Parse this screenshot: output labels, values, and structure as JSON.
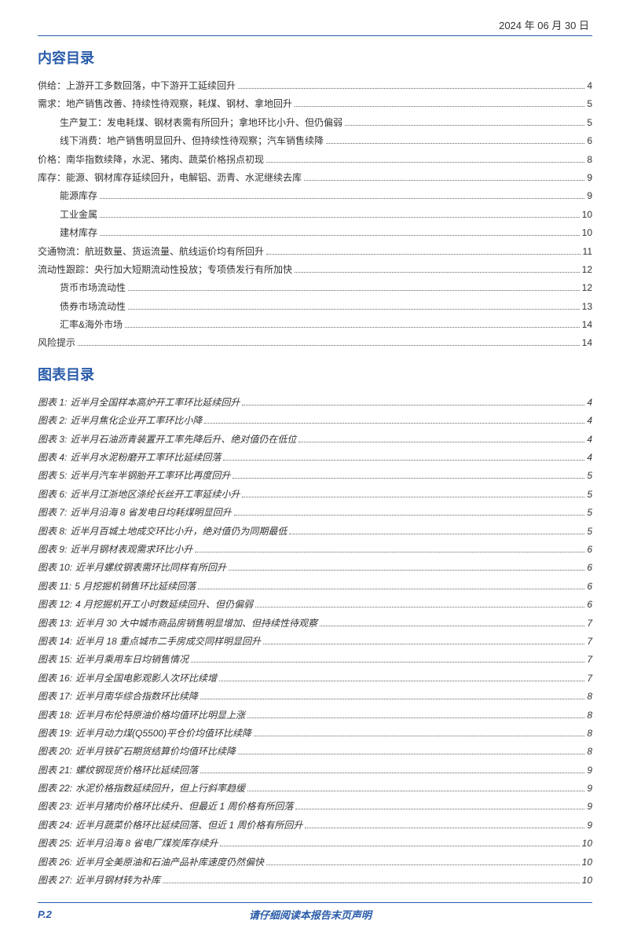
{
  "colors": {
    "primary": "#2a5caa",
    "text": "#333333",
    "background": "#ffffff",
    "dots": "#666666"
  },
  "header": {
    "date": "2024 年 06 月 30 日"
  },
  "sections": {
    "content_toc_title": "内容目录",
    "figure_toc_title": "图表目录"
  },
  "content_toc": [
    {
      "indent": 0,
      "label": "供给：上游开工多数回落，中下游开工延续回升",
      "page": "4"
    },
    {
      "indent": 0,
      "label": "需求：地产销售改善、持续性待观察，耗煤、钢材、拿地回升",
      "page": "5"
    },
    {
      "indent": 1,
      "label": "生产复工：发电耗煤、钢材表需有所回升；拿地环比小升、但仍偏弱",
      "page": "5"
    },
    {
      "indent": 1,
      "label": "线下消费：地产销售明显回升、但持续性待观察；汽车销售续降",
      "page": "6"
    },
    {
      "indent": 0,
      "label": "价格：南华指数续降，水泥、猪肉、蔬菜价格拐点初现",
      "page": "8"
    },
    {
      "indent": 0,
      "label": "库存：能源、钢材库存延续回升，电解铝、沥青、水泥继续去库",
      "page": "9"
    },
    {
      "indent": 1,
      "label": "能源库存",
      "page": "9"
    },
    {
      "indent": 1,
      "label": "工业金属",
      "page": "10"
    },
    {
      "indent": 1,
      "label": "建材库存",
      "page": "10"
    },
    {
      "indent": 0,
      "label": "交通物流：航班数量、货运流量、航线运价均有所回升",
      "page": "11"
    },
    {
      "indent": 0,
      "label": "流动性跟踪：央行加大短期流动性投放；专项债发行有所加快",
      "page": "12"
    },
    {
      "indent": 1,
      "label": "货币市场流动性",
      "page": "12"
    },
    {
      "indent": 1,
      "label": "债券市场流动性",
      "page": "13"
    },
    {
      "indent": 1,
      "label": "汇率&海外市场",
      "page": "14"
    },
    {
      "indent": 0,
      "label": "风险提示",
      "page": "14"
    }
  ],
  "figure_toc": [
    {
      "prefix": "图表 1:",
      "title": "近半月全国样本高炉开工率环比延续回升",
      "page": "4"
    },
    {
      "prefix": "图表 2:",
      "title": "近半月焦化企业开工率环比小降",
      "page": "4"
    },
    {
      "prefix": "图表 3:",
      "title": "近半月石油沥青装置开工率先降后升、绝对值仍在低位",
      "page": "4"
    },
    {
      "prefix": "图表 4:",
      "title": "近半月水泥粉磨开工率环比延续回落",
      "page": "4"
    },
    {
      "prefix": "图表 5:",
      "title": "近半月汽车半钢胎开工率环比再度回升",
      "page": "5"
    },
    {
      "prefix": "图表 6:",
      "title": "近半月江浙地区涤纶长丝开工率延续小升",
      "page": "5"
    },
    {
      "prefix": "图表 7:",
      "title": "近半月沿海 8 省发电日均耗煤明显回升",
      "page": "5"
    },
    {
      "prefix": "图表 8:",
      "title": "近半月百城土地成交环比小升，绝对值仍为同期最低",
      "page": "5"
    },
    {
      "prefix": "图表 9:",
      "title": "近半月钢材表观需求环比小升",
      "page": "6"
    },
    {
      "prefix": "图表 10:",
      "title": "近半月螺纹钢表需环比同样有所回升",
      "page": "6"
    },
    {
      "prefix": "图表 11:",
      "title": "5 月挖掘机销售环比延续回落",
      "page": "6"
    },
    {
      "prefix": "图表 12:",
      "title": "4 月挖掘机开工小时数延续回升、但仍偏弱",
      "page": "6"
    },
    {
      "prefix": "图表 13:",
      "title": "近半月 30 大中城市商品房销售明显增加、但持续性待观察",
      "page": "7"
    },
    {
      "prefix": "图表 14:",
      "title": "近半月 18 重点城市二手房成交同样明显回升",
      "page": "7"
    },
    {
      "prefix": "图表 15:",
      "title": "近半月乘用车日均销售情况",
      "page": "7"
    },
    {
      "prefix": "图表 16:",
      "title": "近半月全国电影观影人次环比续增",
      "page": "7"
    },
    {
      "prefix": "图表 17:",
      "title": "近半月南华综合指数环比续降",
      "page": "8"
    },
    {
      "prefix": "图表 18:",
      "title": "近半月布伦特原油价格均值环比明显上涨",
      "page": "8"
    },
    {
      "prefix": "图表 19:",
      "title": "近半月动力煤(Q5500)平仓价均值环比续降",
      "page": "8"
    },
    {
      "prefix": "图表 20:",
      "title": "近半月铁矿石期货结算价均值环比续降",
      "page": "8"
    },
    {
      "prefix": "图表 21:",
      "title": "螺纹钢现货价格环比延续回落",
      "page": "9"
    },
    {
      "prefix": "图表 22:",
      "title": "水泥价格指数延续回升，但上行斜率趋缓",
      "page": "9"
    },
    {
      "prefix": "图表 23:",
      "title": "近半月猪肉价格环比续升、但最近 1 周价格有所回落",
      "page": "9"
    },
    {
      "prefix": "图表 24:",
      "title": "近半月蔬菜价格环比延续回落、但近 1 周价格有所回升",
      "page": "9"
    },
    {
      "prefix": "图表 25:",
      "title": "近半月沿海 8 省电厂煤炭库存续升",
      "page": "10"
    },
    {
      "prefix": "图表 26:",
      "title": "近半月全美原油和石油产品补库速度仍然偏快",
      "page": "10"
    },
    {
      "prefix": "图表 27:",
      "title": "近半月钢材转为补库",
      "page": "10"
    }
  ],
  "footer": {
    "page_label": "P.2",
    "disclaimer": "请仔细阅读本报告末页声明"
  }
}
